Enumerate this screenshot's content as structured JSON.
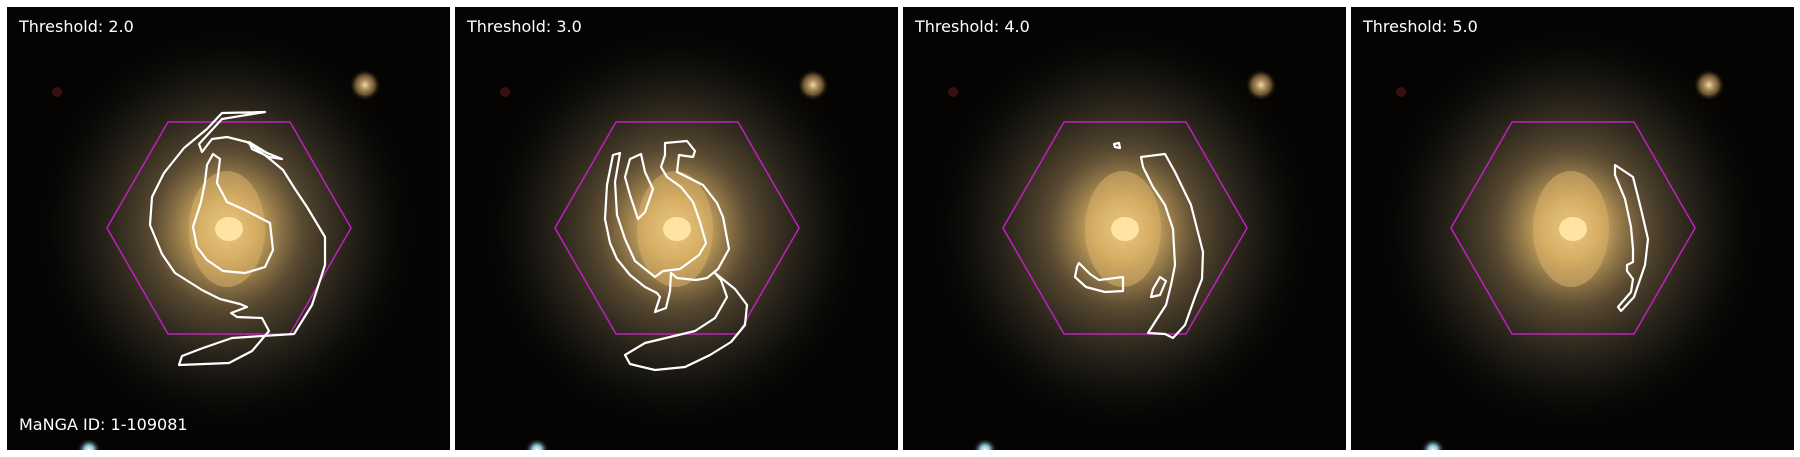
{
  "figure": {
    "galaxy_id_label": "MaNGA ID: 1-109081",
    "panels": [
      {
        "title": "Threshold: 2.0"
      },
      {
        "title": "Threshold: 3.0"
      },
      {
        "title": "Threshold: 4.0"
      },
      {
        "title": "Threshold: 5.0"
      }
    ]
  },
  "colors": {
    "background": "#000000",
    "contour": "#ffffff",
    "ifu_hexagon": "#c020c0",
    "galaxy_core": "#ffd27a",
    "galaxy_disk": "#b9a070",
    "field_star": "#e8c98a",
    "blue_star": "#aef0ff"
  }
}
